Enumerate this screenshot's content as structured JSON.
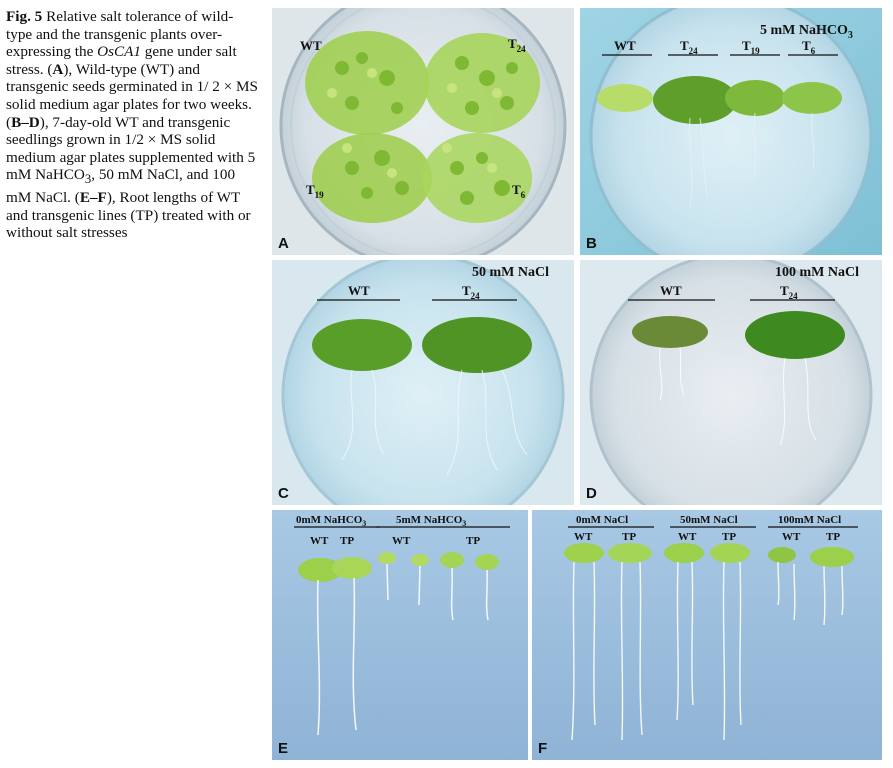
{
  "figure": {
    "caption": {
      "label": "Fig. 5",
      "t1": " Relative salt tolerance of wild-type and the transgenic plants over-expressing the ",
      "gene": "OsCA1",
      "t2": " gene under salt stress. (",
      "a": "A",
      "t3": "), Wild-type (WT) and transgenic seeds germinated in 1/ 2 × MS solid medium agar plates for two weeks. (",
      "bd": "B–D",
      "t4": "), 7-day-old WT and transgenic seedlings grown in 1/2 × MS solid medium agar plates supplemented with 5 mM NaHCO",
      "sub3": "3",
      "t5": ", 50 mM NaCl, and 100 mM NaCl. (",
      "ef": "E–F",
      "t6": "), Root lengths of WT and transgenic lines (TP) treated with or without salt stresses"
    },
    "panels": {
      "A": {
        "letter": "A",
        "wt": "WT",
        "t24": "T",
        "t24sub": "24",
        "t19": "T",
        "t19sub": "19",
        "t6": "T",
        "t6sub": "6"
      },
      "B": {
        "letter": "B",
        "title": "5 mM NaHCO",
        "titlesub": "3",
        "wt": "WT",
        "t24": "T",
        "t24sub": "24",
        "t19": "T",
        "t19sub": "19",
        "t6": "T",
        "t6sub": "6"
      },
      "C": {
        "letter": "C",
        "title": "50 mM NaCl",
        "wt": "WT",
        "t24": "T",
        "t24sub": "24"
      },
      "D": {
        "letter": "D",
        "title": "100 mM NaCl",
        "wt": "WT",
        "t24": "T",
        "t24sub": "24"
      },
      "E": {
        "letter": "E",
        "g1": "0mM NaHCO",
        "g1sub": "3",
        "g2": "5mM NaHCO",
        "g2sub": "3",
        "wt1": "WT",
        "tp1": "TP",
        "wt2": "WT",
        "tp2": "TP"
      },
      "F": {
        "letter": "F",
        "g1": "0mM NaCl",
        "g2": "50mM NaCl",
        "g3": "100mM NaCl",
        "wt1": "WT",
        "tp1": "TP",
        "wt2": "WT",
        "tp2": "TP",
        "wt3": "WT",
        "tp3": "TP"
      }
    }
  }
}
